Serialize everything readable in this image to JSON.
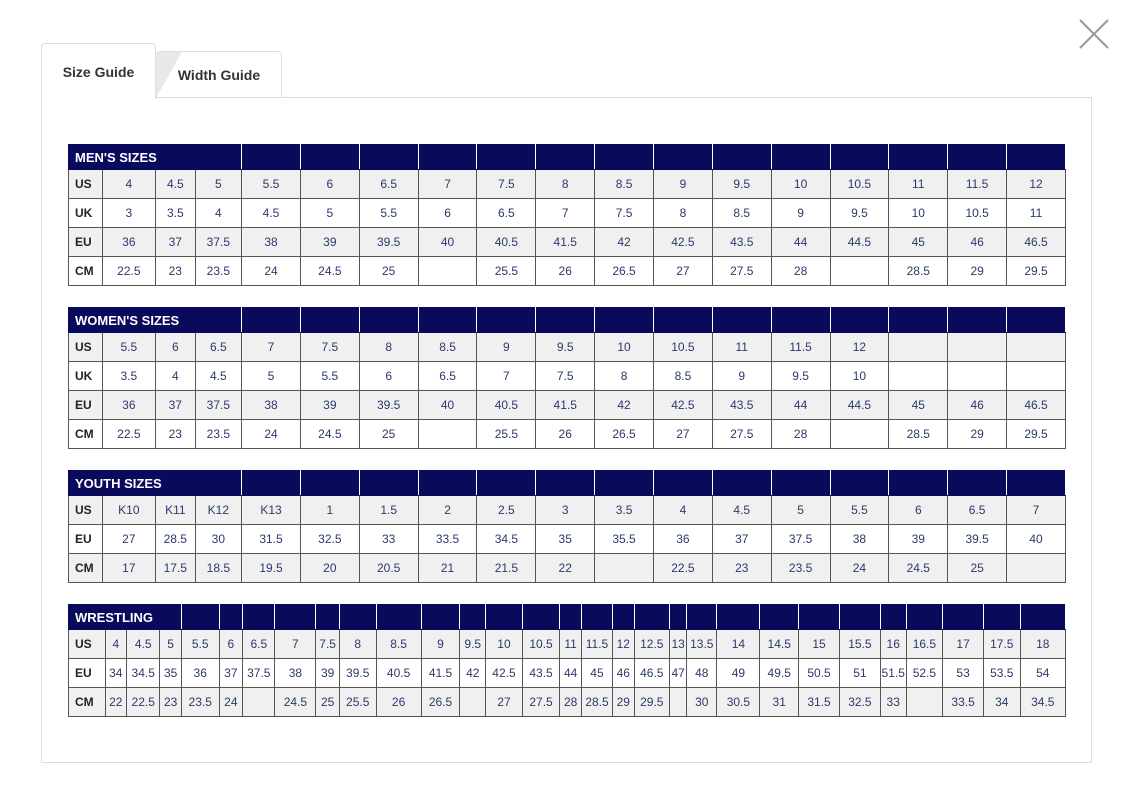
{
  "tabs": [
    {
      "label": "Size Guide",
      "active": true
    },
    {
      "label": "Width Guide",
      "active": false
    }
  ],
  "close_icon": "close-x-icon",
  "colors": {
    "header": "#0a0a5c",
    "stripe": "#f0f0f0",
    "text": "#2a3a6a"
  },
  "tables": [
    {
      "title": "MEN'S SIZES",
      "rows": [
        {
          "label": "US",
          "values": [
            "4",
            "4.5",
            "5",
            "5.5",
            "6",
            "6.5",
            "7",
            "7.5",
            "8",
            "8.5",
            "9",
            "9.5",
            "10",
            "10.5",
            "11",
            "11.5",
            "12"
          ]
        },
        {
          "label": "UK",
          "values": [
            "3",
            "3.5",
            "4",
            "4.5",
            "5",
            "5.5",
            "6",
            "6.5",
            "7",
            "7.5",
            "8",
            "8.5",
            "9",
            "9.5",
            "10",
            "10.5",
            "11"
          ]
        },
        {
          "label": "EU",
          "values": [
            "36",
            "37",
            "37.5",
            "38",
            "39",
            "39.5",
            "40",
            "40.5",
            "41.5",
            "42",
            "42.5",
            "43.5",
            "44",
            "44.5",
            "45",
            "46",
            "46.5"
          ]
        },
        {
          "label": "CM",
          "values": [
            "22.5",
            "23",
            "23.5",
            "24",
            "24.5",
            "25",
            "",
            "25.5",
            "26",
            "26.5",
            "27",
            "27.5",
            "28",
            "",
            "28.5",
            "29",
            "29.5"
          ]
        }
      ]
    },
    {
      "title": "WOMEN'S SIZES",
      "rows": [
        {
          "label": "US",
          "values": [
            "5.5",
            "6",
            "6.5",
            "7",
            "7.5",
            "8",
            "8.5",
            "9",
            "9.5",
            "10",
            "10.5",
            "11",
            "11.5",
            "12",
            "",
            "",
            ""
          ]
        },
        {
          "label": "UK",
          "values": [
            "3.5",
            "4",
            "4.5",
            "5",
            "5.5",
            "6",
            "6.5",
            "7",
            "7.5",
            "8",
            "8.5",
            "9",
            "9.5",
            "10",
            "",
            "",
            ""
          ]
        },
        {
          "label": "EU",
          "values": [
            "36",
            "37",
            "37.5",
            "38",
            "39",
            "39.5",
            "40",
            "40.5",
            "41.5",
            "42",
            "42.5",
            "43.5",
            "44",
            "44.5",
            "45",
            "46",
            "46.5"
          ]
        },
        {
          "label": "CM",
          "values": [
            "22.5",
            "23",
            "23.5",
            "24",
            "24.5",
            "25",
            "",
            "25.5",
            "26",
            "26.5",
            "27",
            "27.5",
            "28",
            "",
            "28.5",
            "29",
            "29.5"
          ]
        }
      ]
    },
    {
      "title": "YOUTH SIZES",
      "rows": [
        {
          "label": "US",
          "values": [
            "K10",
            "K11",
            "K12",
            "K13",
            "1",
            "1.5",
            "2",
            "2.5",
            "3",
            "3.5",
            "4",
            "4.5",
            "5",
            "5.5",
            "6",
            "6.5",
            "7"
          ]
        },
        {
          "label": "EU",
          "values": [
            "27",
            "28.5",
            "30",
            "31.5",
            "32.5",
            "33",
            "33.5",
            "34.5",
            "35",
            "35.5",
            "36",
            "37",
            "37.5",
            "38",
            "39",
            "39.5",
            "40"
          ]
        },
        {
          "label": "CM",
          "values": [
            "17",
            "17.5",
            "18.5",
            "19.5",
            "20",
            "20.5",
            "21",
            "21.5",
            "22",
            "",
            "22.5",
            "23",
            "23.5",
            "24",
            "24.5",
            "25",
            ""
          ]
        }
      ]
    },
    {
      "title": "WRESTLING",
      "rows": [
        {
          "label": "US",
          "values": [
            "4",
            "4.5",
            "5",
            "5.5",
            "6",
            "6.5",
            "7",
            "7.5",
            "8",
            "8.5",
            "9",
            "9.5",
            "10",
            "10.5",
            "11",
            "11.5",
            "12",
            "12.5",
            "13",
            "13.5",
            "14",
            "14.5",
            "15",
            "15.5",
            "16",
            "16.5",
            "17",
            "17.5",
            "18"
          ]
        },
        {
          "label": "EU",
          "values": [
            "34",
            "34.5",
            "35",
            "36",
            "37",
            "37.5",
            "38",
            "39",
            "39.5",
            "40.5",
            "41.5",
            "42",
            "42.5",
            "43.5",
            "44",
            "45",
            "46",
            "46.5",
            "47",
            "48",
            "49",
            "49.5",
            "50.5",
            "51",
            "51.5",
            "52.5",
            "53",
            "53.5",
            "54"
          ]
        },
        {
          "label": "CM",
          "values": [
            "22",
            "22.5",
            "23",
            "23.5",
            "24",
            "",
            "24.5",
            "25",
            "25.5",
            "26",
            "26.5",
            "",
            "27",
            "27.5",
            "28",
            "28.5",
            "29",
            "29.5",
            "",
            "30",
            "30.5",
            "31",
            "31.5",
            "32.5",
            "33",
            "",
            "33.5",
            "34",
            "34.5"
          ]
        }
      ]
    }
  ]
}
